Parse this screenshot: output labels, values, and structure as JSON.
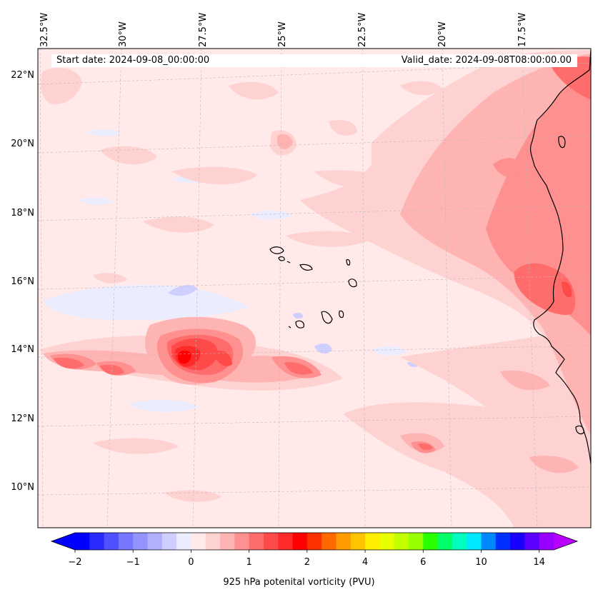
{
  "map": {
    "start_date_text": "Start date: 2024-09-08_00:00:00",
    "valid_date_text": "Valid_date: 2024-09-08T08:00:00.00",
    "variable": "925 hPa potenital vorticity (PVU)",
    "lon_labels": [
      "32.5°W",
      "30°W",
      "27.5°W",
      "25°W",
      "22.5°W",
      "20°W",
      "17.5°W"
    ],
    "lat_labels": [
      "22°N",
      "20°N",
      "18°N",
      "16°N",
      "14°N",
      "12°N",
      "10°N"
    ],
    "extent": {
      "lon_min": -32.7,
      "lon_max": -15.0,
      "lat_min": 8.9,
      "lat_max": 22.8
    }
  },
  "colorbar": {
    "tick_labels": [
      "−2",
      "−1",
      "0",
      "1",
      "2",
      "4",
      "6",
      "10",
      "14"
    ],
    "levels": [
      -2,
      -1.75,
      -1.5,
      -1.25,
      -1,
      -0.75,
      -0.5,
      -0.25,
      0,
      0.25,
      0.5,
      0.75,
      1,
      1.25,
      1.5,
      1.75,
      2,
      2.5,
      3,
      3.5,
      4,
      4.5,
      5,
      5.5,
      6,
      7,
      8,
      9,
      10,
      11,
      12,
      13,
      14,
      15
    ],
    "colors": [
      "#0000ff",
      "#2a2aff",
      "#5050ff",
      "#7676ff",
      "#9494ff",
      "#b0b0ff",
      "#cfcfff",
      "#ececff",
      "#ffe9e9",
      "#ffd2d2",
      "#ffb4b4",
      "#ff9090",
      "#ff6c6c",
      "#ff4a4a",
      "#ff2a2a",
      "#ff0000",
      "#ff3000",
      "#ff6a00",
      "#ff9a00",
      "#ffc400",
      "#ffee00",
      "#e8ff00",
      "#c4ff00",
      "#98ff00",
      "#28ff00",
      "#00ff66",
      "#00ffbe",
      "#00e8ff",
      "#0088ff",
      "#0030ff",
      "#1a00ff",
      "#5c00ff",
      "#9800ff"
    ],
    "under_color": "#0000ff",
    "over_color": "#b900ff"
  },
  "features": {
    "vortex_center": {
      "lon": -27.1,
      "lat": 13.7,
      "pv": 2.1
    },
    "secondary_max": {
      "lon": -19.3,
      "lat": 11.1,
      "pv": 1.0
    },
    "coast_max": {
      "lon": -15.8,
      "lat": 15.9,
      "pv": 1.2
    }
  }
}
